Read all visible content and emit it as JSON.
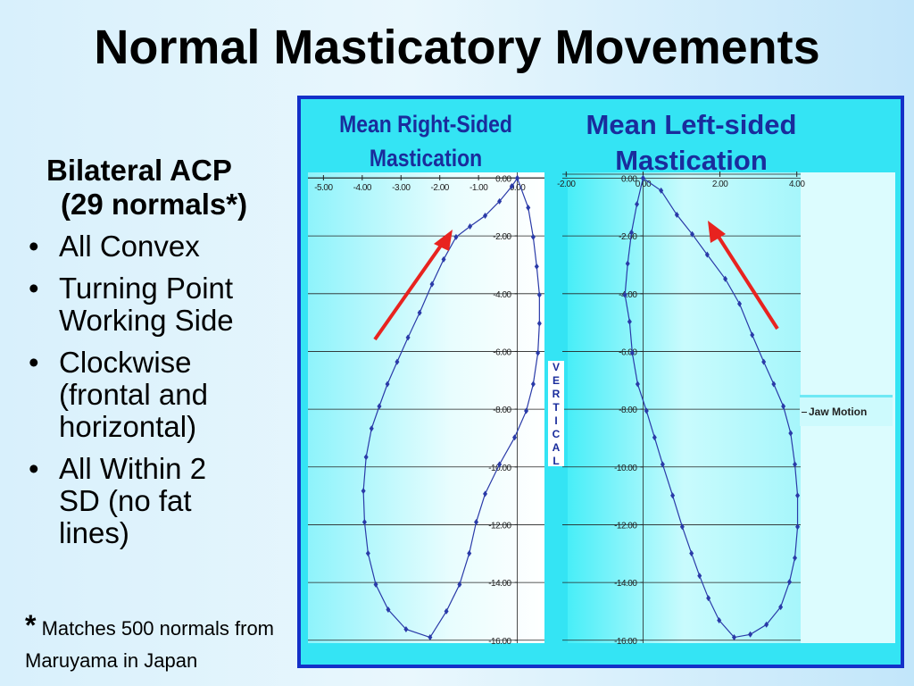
{
  "slide": {
    "title": "Normal Masticatory Movements",
    "heading": [
      "Bilateral ACP",
      "(29 normals*)"
    ],
    "bullets": [
      "All Convex",
      "Turning Point Working Side",
      "Clockwise (frontal and horizontal)",
      "All Within 2 SD (no fat lines)"
    ],
    "footnote_mark": "*",
    "footnote": "Matches 500 normals from Maruyama in Japan"
  },
  "chart_data": [
    {
      "type": "line",
      "title": "Mean Right-Sided Mastication",
      "ylabel": "VERTICAL",
      "xlim": [
        -5.4,
        0.7
      ],
      "ylim": [
        -16.1,
        0.2
      ],
      "xticks": [
        {
          "value": -5,
          "label": "-5.00"
        },
        {
          "value": -4,
          "label": "-4.00"
        },
        {
          "value": -3,
          "label": "-3.00"
        },
        {
          "value": -2,
          "label": "-2.00"
        },
        {
          "value": -1,
          "label": "-1.00"
        },
        {
          "value": 0,
          "label": "0.00"
        }
      ],
      "yticks": [
        {
          "value": 0,
          "label": "0.00"
        },
        {
          "value": -2,
          "label": "-2.00"
        },
        {
          "value": -4,
          "label": "-4.00"
        },
        {
          "value": -6,
          "label": "-6.00"
        },
        {
          "value": -8,
          "label": "-8.00"
        },
        {
          "value": -10,
          "label": "-10.00"
        },
        {
          "value": -12,
          "label": "-12.00"
        },
        {
          "value": -14,
          "label": "-14.00"
        },
        {
          "value": -16,
          "label": "-16.00"
        }
      ],
      "grid": true,
      "series": [
        {
          "color": "#2a3aa8",
          "x": [
            0,
            0.28,
            0.41,
            0.5,
            0.57,
            0.57,
            0.53,
            0.41,
            0.23,
            -0.07,
            -0.46,
            -0.83,
            -1.06,
            -1.24,
            -1.49,
            -1.83,
            -2.25,
            -2.87,
            -3.33,
            -3.65,
            -3.85,
            -3.94,
            -3.97,
            -3.9,
            -3.76,
            -3.56,
            -3.35,
            -3.1,
            -2.82,
            -2.52,
            -2.2,
            -1.9,
            -1.58,
            -1.22,
            -0.83,
            -0.46,
            -0.14,
            0
          ],
          "values": [
            0,
            -1.02,
            -2.04,
            -3.06,
            -4.04,
            -5.03,
            -6.05,
            -7.13,
            -8.06,
            -8.98,
            -9.91,
            -10.93,
            -11.91,
            -12.99,
            -14.07,
            -15,
            -15.9,
            -15.62,
            -14.94,
            -14.07,
            -12.99,
            -11.91,
            -10.83,
            -9.66,
            -8.67,
            -7.9,
            -7.13,
            -6.36,
            -5.52,
            -4.66,
            -3.67,
            -2.81,
            -2.04,
            -1.67,
            -1.3,
            -0.8,
            -0.28,
            0
          ]
        }
      ]
    },
    {
      "type": "line",
      "title": "Mean Left-sided Mastication",
      "xlim": [
        -2.1,
        4.1
      ],
      "ylim": [
        -16.1,
        0.2
      ],
      "xticks": [
        {
          "value": -2,
          "label": "-2.00"
        },
        {
          "value": 0,
          "label": "0.00"
        },
        {
          "value": 2,
          "label": "2.00"
        },
        {
          "value": 4,
          "label": "4.00"
        }
      ],
      "yticks": [
        {
          "value": 0,
          "label": "0.00"
        },
        {
          "value": -2,
          "label": "-2.00"
        },
        {
          "value": -4,
          "label": "-4.00"
        },
        {
          "value": -6,
          "label": "-6.00"
        },
        {
          "value": -8,
          "label": "-8.00"
        },
        {
          "value": -10,
          "label": "-10.00"
        },
        {
          "value": -12,
          "label": "-12.00"
        },
        {
          "value": -14,
          "label": "-14.00"
        },
        {
          "value": -16,
          "label": "-16.00"
        }
      ],
      "grid": true,
      "legend": "right",
      "series": [
        {
          "name": "Jaw Motion",
          "color": "#2a3aa8",
          "x": [
            0,
            0.47,
            0.88,
            1.28,
            1.67,
            2.14,
            2.51,
            2.84,
            3.14,
            3.4,
            3.65,
            3.84,
            3.95,
            4.02,
            4.02,
            3.95,
            3.81,
            3.58,
            3.21,
            2.79,
            2.37,
            1.98,
            1.7,
            1.47,
            1.26,
            1.02,
            0.77,
            0.51,
            0.3,
            0.09,
            -0.14,
            -0.28,
            -0.35,
            -0.47,
            -0.4,
            -0.3,
            -0.16,
            0
          ],
          "values": [
            0,
            -0.43,
            -1.27,
            -1.94,
            -2.65,
            -3.49,
            -4.35,
            -5.43,
            -6.36,
            -7.13,
            -7.9,
            -8.83,
            -9.91,
            -10.99,
            -12.07,
            -13.15,
            -13.98,
            -14.85,
            -15.46,
            -15.8,
            -15.9,
            -15.31,
            -14.54,
            -13.77,
            -12.99,
            -12.07,
            -10.99,
            -9.91,
            -8.98,
            -8.06,
            -7.13,
            -6.05,
            -4.97,
            -4.04,
            -2.96,
            -1.88,
            -0.9,
            0
          ]
        }
      ]
    }
  ]
}
